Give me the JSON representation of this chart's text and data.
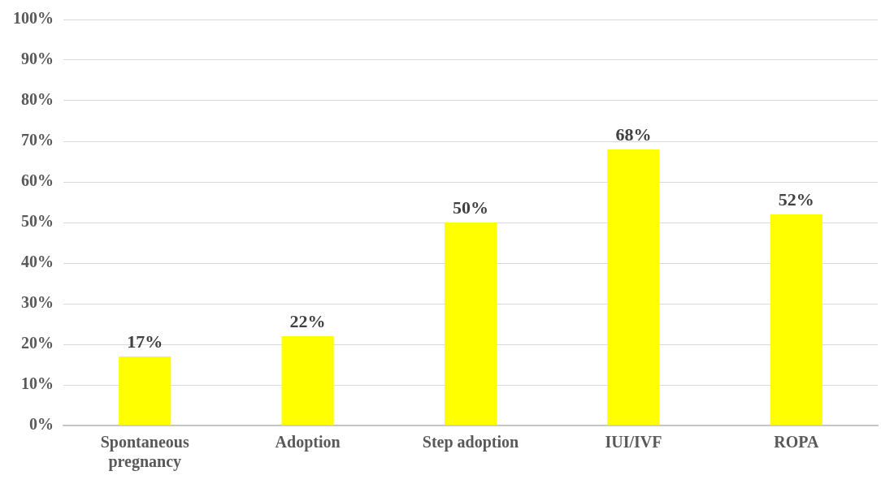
{
  "chart_data": {
    "type": "bar",
    "categories": [
      "Spontaneous pregnancy",
      "Adoption",
      "Step adoption",
      "IUI/IVF",
      "ROPA"
    ],
    "values": [
      17,
      22,
      50,
      68,
      52
    ],
    "color": "#ffff00",
    "value_labels": [
      "17%",
      "22%",
      "50%",
      "68%",
      "52%"
    ],
    "ylim": [
      0,
      100
    ],
    "yticks": [
      {
        "value": 0,
        "label": "0%"
      },
      {
        "value": 10,
        "label": "10%"
      },
      {
        "value": 20,
        "label": "20%"
      },
      {
        "value": 30,
        "label": "30%"
      },
      {
        "value": 40,
        "label": "40%"
      },
      {
        "value": 50,
        "label": "50%"
      },
      {
        "value": 60,
        "label": "60%"
      },
      {
        "value": 70,
        "label": "70%"
      },
      {
        "value": 80,
        "label": "80%"
      },
      {
        "value": 90,
        "label": "90%"
      },
      {
        "value": 100,
        "label": "100%"
      }
    ],
    "grid": "y",
    "legend": false
  }
}
